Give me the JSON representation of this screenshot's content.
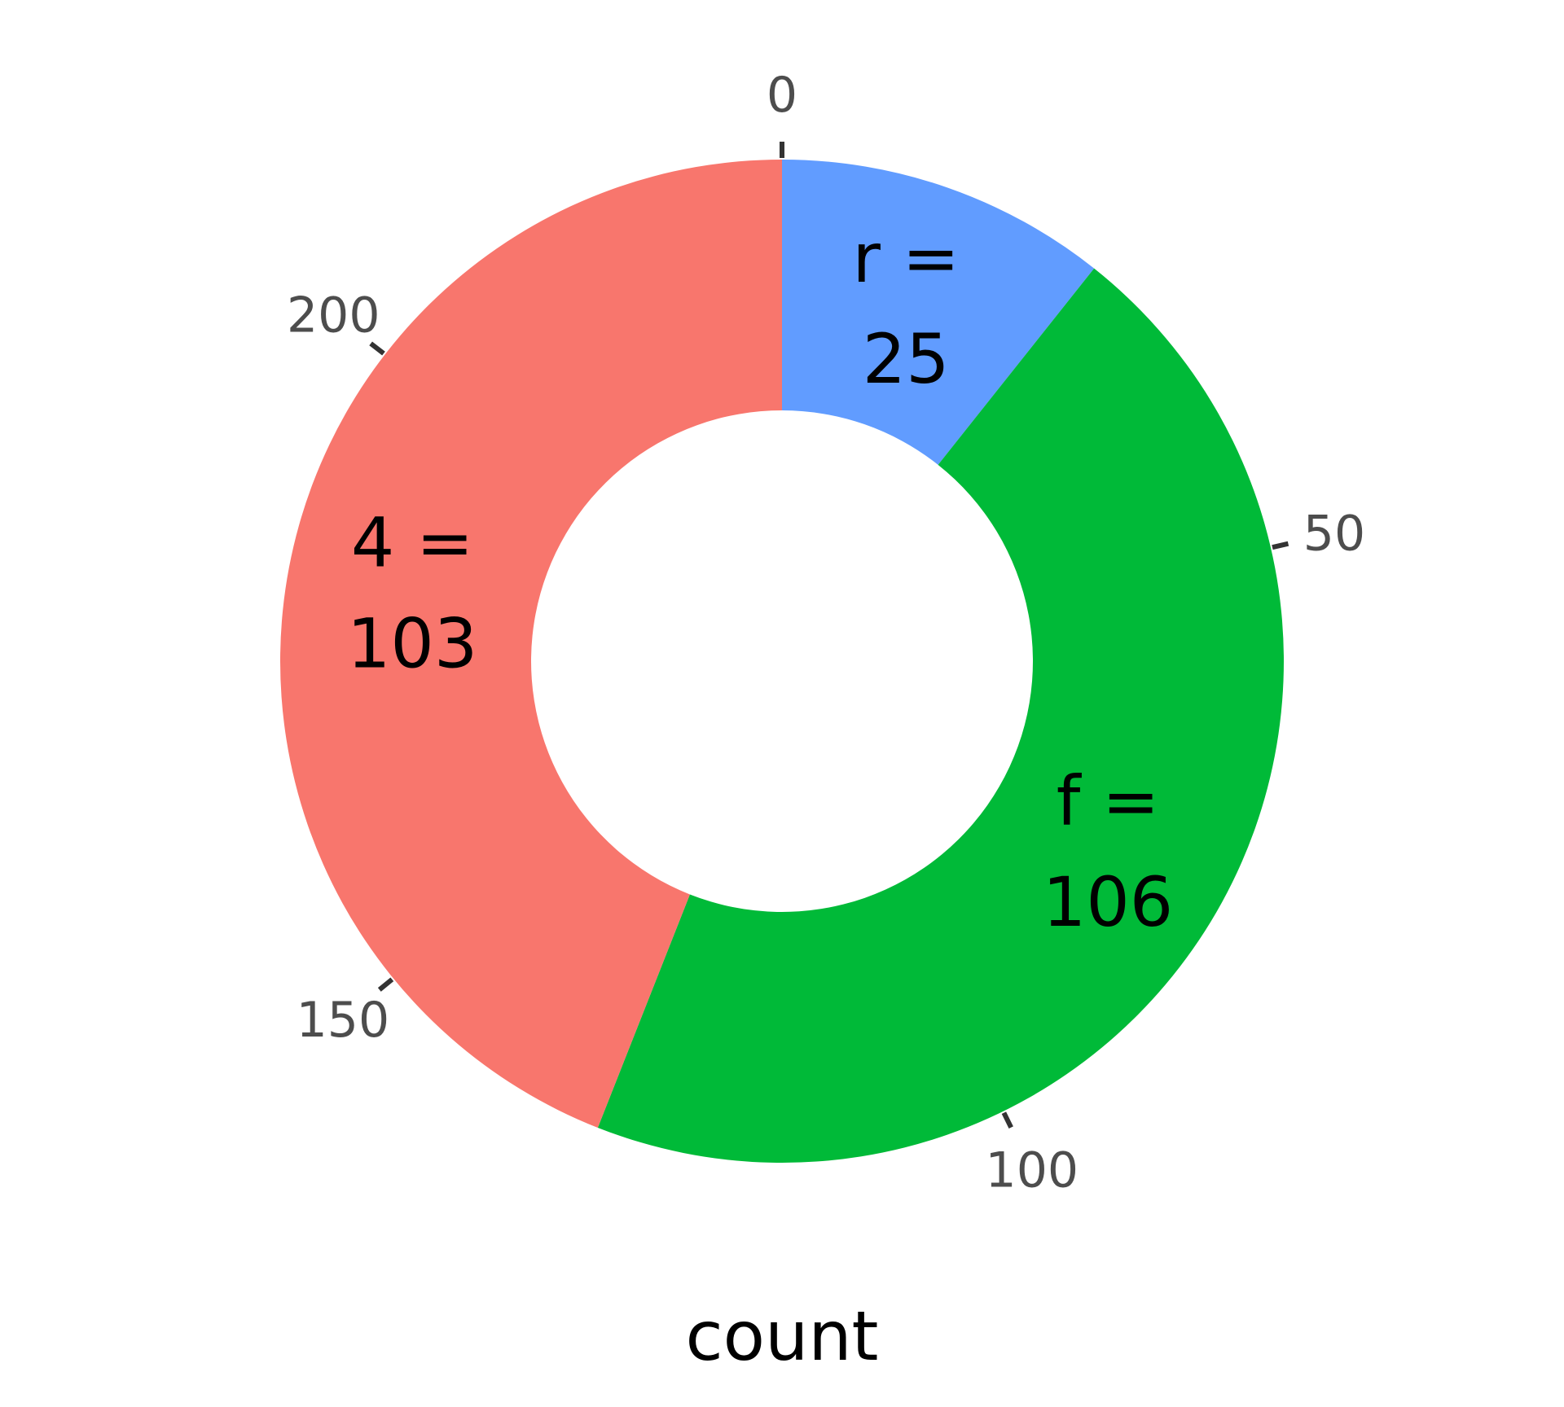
{
  "chart_data": {
    "type": "pie",
    "subtype": "donut",
    "direction": "clockwise",
    "start_angle": "top",
    "total": 234,
    "categories": [
      "r",
      "f",
      "4"
    ],
    "values": [
      25,
      106,
      103
    ],
    "colors": [
      "#619CFF",
      "#00BA38",
      "#F8766D"
    ],
    "slice_labels": [
      {
        "line1": "r =",
        "line2": "25"
      },
      {
        "line1": "f =",
        "line2": "106"
      },
      {
        "line1": "4 =",
        "line2": "103"
      }
    ],
    "ticks": [
      0,
      50,
      100,
      150,
      200
    ],
    "tick_labels": [
      "0",
      "50",
      "100",
      "150",
      "200"
    ],
    "xlabel": "count",
    "legend": "none",
    "grid": false
  }
}
